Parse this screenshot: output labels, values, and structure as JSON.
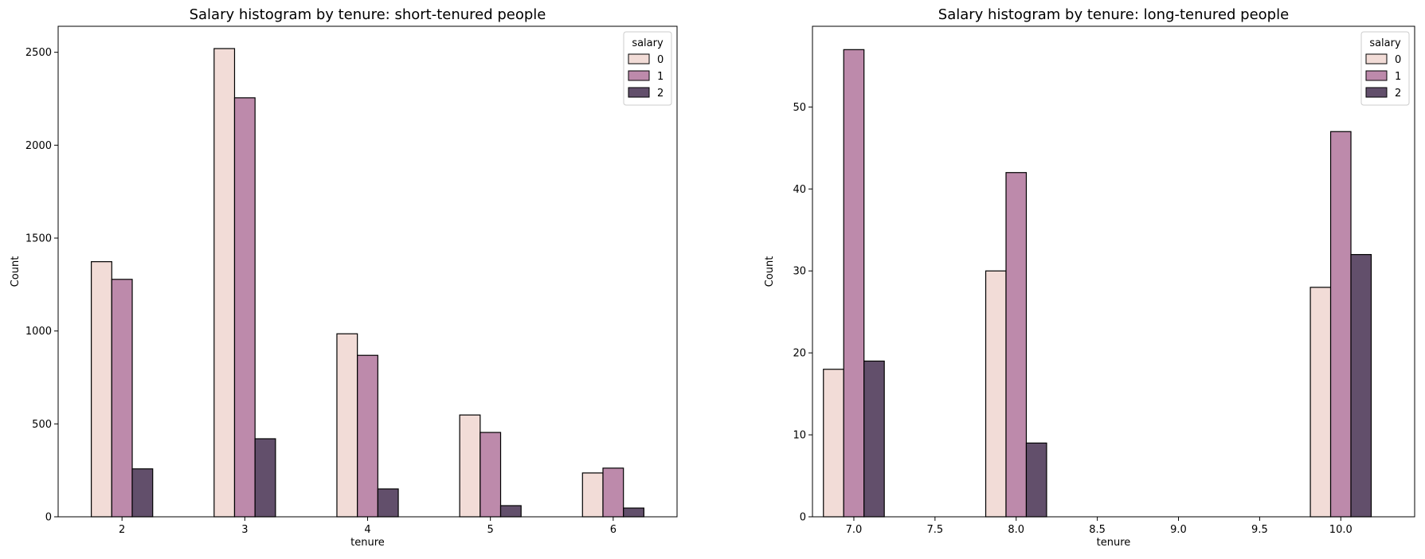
{
  "chart_data": [
    {
      "type": "bar",
      "title": "Salary histogram by tenure: short-tenured people",
      "xlabel": "tenure",
      "ylabel": "Count",
      "x_ticks": [
        "2",
        "3",
        "4",
        "5",
        "6"
      ],
      "y_ticks": [
        "0",
        "500",
        "1000",
        "1500",
        "2000",
        "2500"
      ],
      "xlim": [
        1.48,
        6.52
      ],
      "ylim": [
        0,
        2640
      ],
      "categories": [
        2,
        3,
        4,
        5,
        6
      ],
      "bin_width": 0.5,
      "legend": {
        "title": "salary",
        "position": "top-right"
      },
      "series": [
        {
          "name": "0",
          "color": "#f2dcd7",
          "values": [
            1373,
            2520,
            985,
            548,
            236
          ]
        },
        {
          "name": "1",
          "color": "#bd8aab",
          "values": [
            1278,
            2255,
            869,
            454,
            262
          ]
        },
        {
          "name": "2",
          "color": "#624f6b",
          "values": [
            258,
            420,
            150,
            60,
            47
          ]
        }
      ]
    },
    {
      "type": "bar",
      "title": "Salary histogram by tenure: long-tenured people",
      "xlabel": "tenure",
      "ylabel": "Count",
      "x_ticks": [
        "7.0",
        "7.5",
        "8.0",
        "8.5",
        "9.0",
        "9.5",
        "10.0"
      ],
      "y_ticks": [
        "0",
        "10",
        "20",
        "30",
        "40",
        "50"
      ],
      "xlim": [
        6.745,
        10.455
      ],
      "ylim": [
        0,
        59.85
      ],
      "categories": [
        7,
        8,
        10
      ],
      "bin_width": 0.375,
      "legend": {
        "title": "salary",
        "position": "top-right"
      },
      "series": [
        {
          "name": "0",
          "color": "#f2dcd7",
          "values": [
            18,
            30,
            28
          ]
        },
        {
          "name": "1",
          "color": "#bd8aab",
          "values": [
            57,
            42,
            47
          ]
        },
        {
          "name": "2",
          "color": "#624f6b",
          "values": [
            19,
            9,
            32
          ]
        }
      ]
    }
  ]
}
